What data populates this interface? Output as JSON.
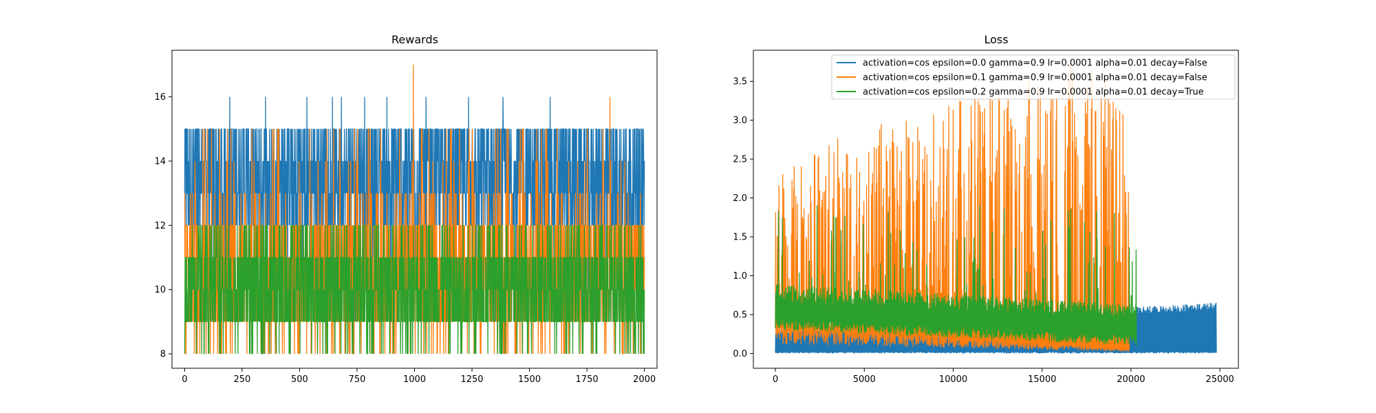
{
  "colors": {
    "series1": "#1f77b4",
    "series2": "#ff7f0e",
    "series3": "#2ca02c",
    "frame": "#000000",
    "background": "#ffffff"
  },
  "chart_data": [
    {
      "type": "line",
      "title": "Rewards",
      "xlabel": "",
      "ylabel": "",
      "xlim": [
        -55,
        2055
      ],
      "ylim": [
        7.55,
        17.45
      ],
      "x_ticks": [
        0,
        250,
        500,
        750,
        1000,
        1250,
        1500,
        1750,
        2000
      ],
      "y_ticks": [
        8,
        10,
        12,
        14,
        16
      ],
      "grid": false,
      "series": [
        {
          "color": "#1f77b4",
          "x_range": [
            0,
            2000
          ],
          "values_range": [
            9,
            15
          ],
          "max": 16,
          "typical_range": [
            12,
            15
          ],
          "outlier_x": [
            196,
            352,
            532,
            643,
            682,
            783,
            880,
            1050,
            1235,
            1385,
            1590
          ]
        },
        {
          "color": "#ff7f0e",
          "x_range": [
            0,
            2000
          ],
          "values_range": [
            8,
            13
          ],
          "max": 17,
          "typical_range": [
            9,
            12
          ],
          "peaks": [
            {
              "x": 995,
              "y": 17
            },
            {
              "x": 1850,
              "y": 16
            }
          ]
        },
        {
          "color": "#2ca02c",
          "x_range": [
            0,
            2000
          ],
          "values_range": [
            8,
            12
          ],
          "typical_range": [
            9,
            11
          ]
        }
      ]
    },
    {
      "type": "line",
      "title": "Loss",
      "xlabel": "",
      "ylabel": "",
      "xlim": [
        -1240,
        26040
      ],
      "ylim": [
        -0.19,
        3.9
      ],
      "x_ticks": [
        0,
        5000,
        10000,
        15000,
        20000,
        25000
      ],
      "y_ticks": [
        0.0,
        0.5,
        1.0,
        1.5,
        2.0,
        2.5,
        3.0,
        3.5
      ],
      "grid": false,
      "legend_position": "upper right",
      "legend": [
        "activation=cos epsilon=0.0 gamma=0.9 lr=0.0001 alpha=0.01 decay=False",
        "activation=cos epsilon=0.1 gamma=0.9 lr=0.0001 alpha=0.01 decay=False",
        "activation=cos epsilon=0.2 gamma=0.9 lr=0.0001 alpha=0.01 decay=True"
      ],
      "series": [
        {
          "name": "activation=cos epsilon=0.0 gamma=0.9 lr=0.0001 alpha=0.01 decay=False",
          "color": "#1f77b4",
          "x_range": [
            0,
            24800
          ],
          "low": 0.0,
          "high_start": 0.3,
          "high_end": 0.66
        },
        {
          "name": "activation=cos epsilon=0.1 gamma=0.9 lr=0.0001 alpha=0.01 decay=False",
          "color": "#ff7f0e",
          "x_range": [
            0,
            19900
          ],
          "floor_start": 0.3,
          "floor_end": 0.05,
          "peak_start": 2.4,
          "peak_end": 3.8
        },
        {
          "name": "activation=cos epsilon=0.2 gamma=0.9 lr=0.0001 alpha=0.01 decay=True",
          "color": "#2ca02c",
          "x_range": [
            0,
            20300
          ],
          "floor_start": 0.3,
          "floor_end": 0.1,
          "top_start": 0.85,
          "top_end": 0.6,
          "spike_max": 1.95
        }
      ]
    }
  ]
}
